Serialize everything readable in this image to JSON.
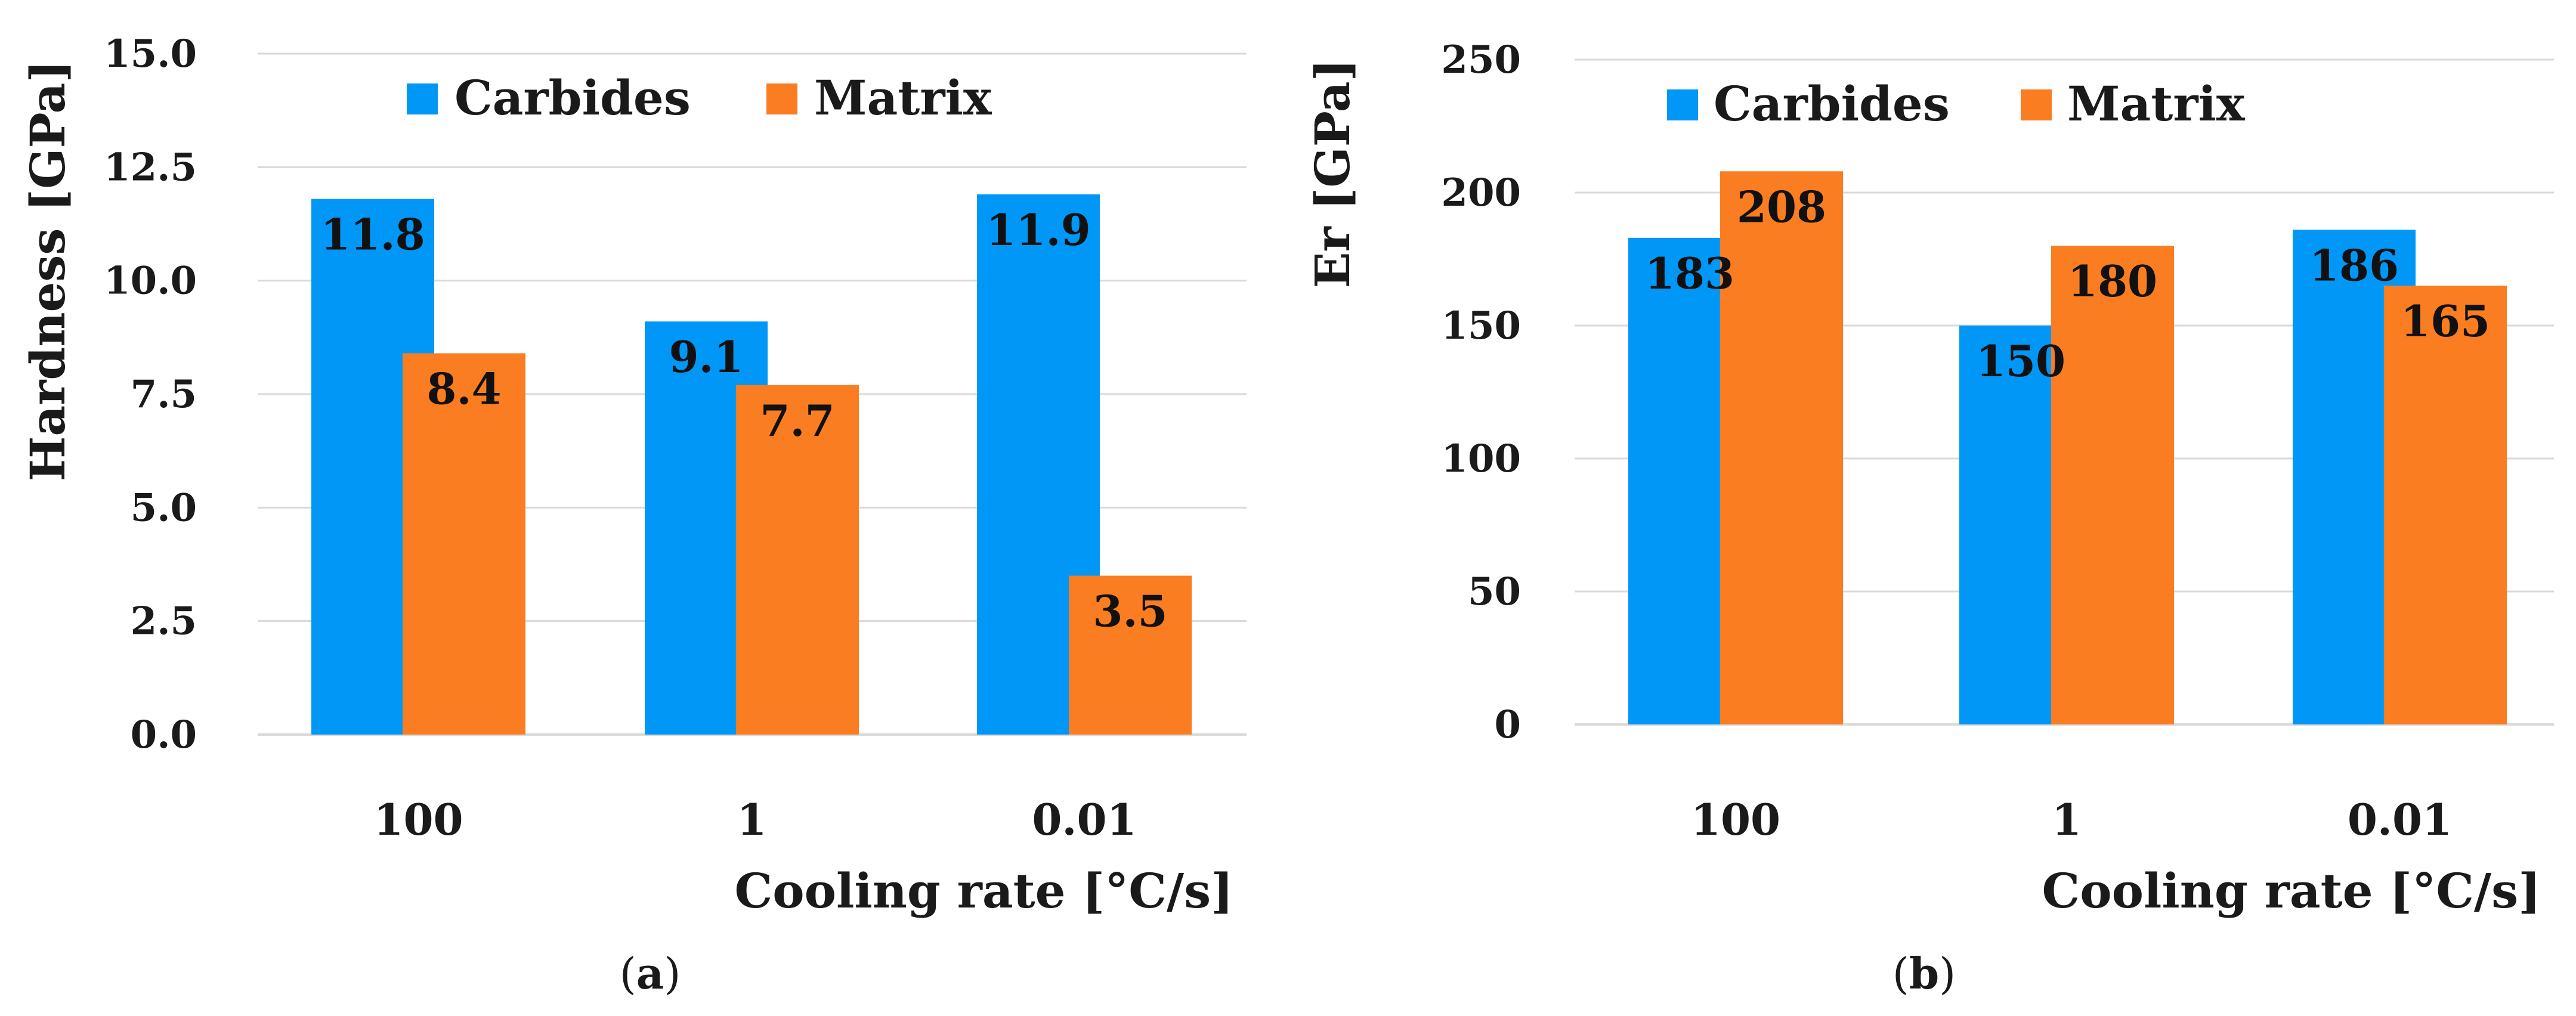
{
  "colors": {
    "carbides": "#0097F7",
    "matrix": "#FB7D21",
    "grid": "#D9D9D9"
  },
  "chart_data": [
    {
      "type": "bar",
      "panel": "a",
      "caption_letter": "a",
      "title": "",
      "xlabel": "Cooling rate [°C/s]",
      "ylabel": "Hardness [GPa]",
      "categories": [
        "100",
        "1",
        "0.01"
      ],
      "series": [
        {
          "name": "Carbides",
          "values": [
            11.8,
            9.1,
            11.9
          ],
          "labels": [
            "11.8",
            "9.1",
            "11.9"
          ]
        },
        {
          "name": "Matrix",
          "values": [
            8.4,
            7.7,
            3.5
          ],
          "labels": [
            "8.4",
            "7.7",
            "3.5"
          ]
        }
      ],
      "ylim": [
        0,
        15
      ],
      "yticks": [
        "0.0",
        "2.5",
        "5.0",
        "7.5",
        "10.0",
        "12.5",
        "15.0"
      ],
      "grid": true,
      "legend": "top"
    },
    {
      "type": "bar",
      "panel": "b",
      "caption_letter": "b",
      "title": "",
      "xlabel": "Cooling rate [°C/s]",
      "ylabel": "Er [GPa]",
      "categories": [
        "100",
        "1",
        "0.01"
      ],
      "series": [
        {
          "name": "Carbides",
          "values": [
            183,
            150,
            186
          ],
          "labels": [
            "183",
            "150",
            "186"
          ]
        },
        {
          "name": "Matrix",
          "values": [
            208,
            180,
            165
          ],
          "labels": [
            "208",
            "180",
            "165"
          ]
        }
      ],
      "ylim": [
        0,
        250
      ],
      "yticks": [
        "0",
        "50",
        "100",
        "150",
        "200",
        "250"
      ],
      "grid": true,
      "legend": "top"
    }
  ]
}
